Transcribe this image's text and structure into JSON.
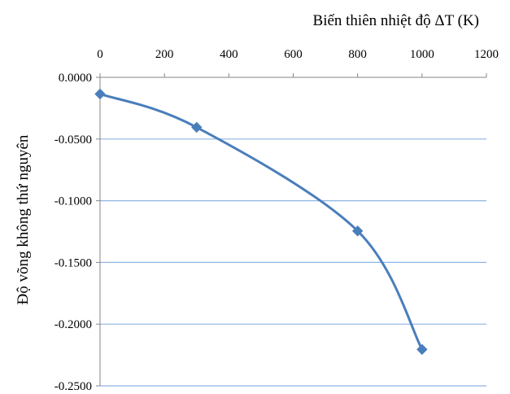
{
  "chart_data": {
    "type": "line",
    "title": "",
    "xlabel": "Biến thiên nhiệt độ ΔT (K)",
    "ylabel": "Độ võng không thứ nguyên",
    "x_axis_position": "top",
    "xlim": [
      0,
      1200
    ],
    "ylim": [
      -0.25,
      0
    ],
    "x_ticks": [
      "0",
      "200",
      "400",
      "600",
      "800",
      "1000",
      "1200"
    ],
    "y_ticks": [
      "0.0000",
      "-0.0500",
      "-0.1000",
      "-0.1500",
      "-0.2000",
      "-0.2500"
    ],
    "grid": "horizontal",
    "legend": "none",
    "series": [
      {
        "color": "#4a7ebb",
        "marker": "diamond",
        "smooth": true,
        "x": [
          0,
          300,
          800,
          1000
        ],
        "y": [
          -0.0135,
          -0.0405,
          -0.1245,
          -0.2205
        ]
      }
    ]
  }
}
